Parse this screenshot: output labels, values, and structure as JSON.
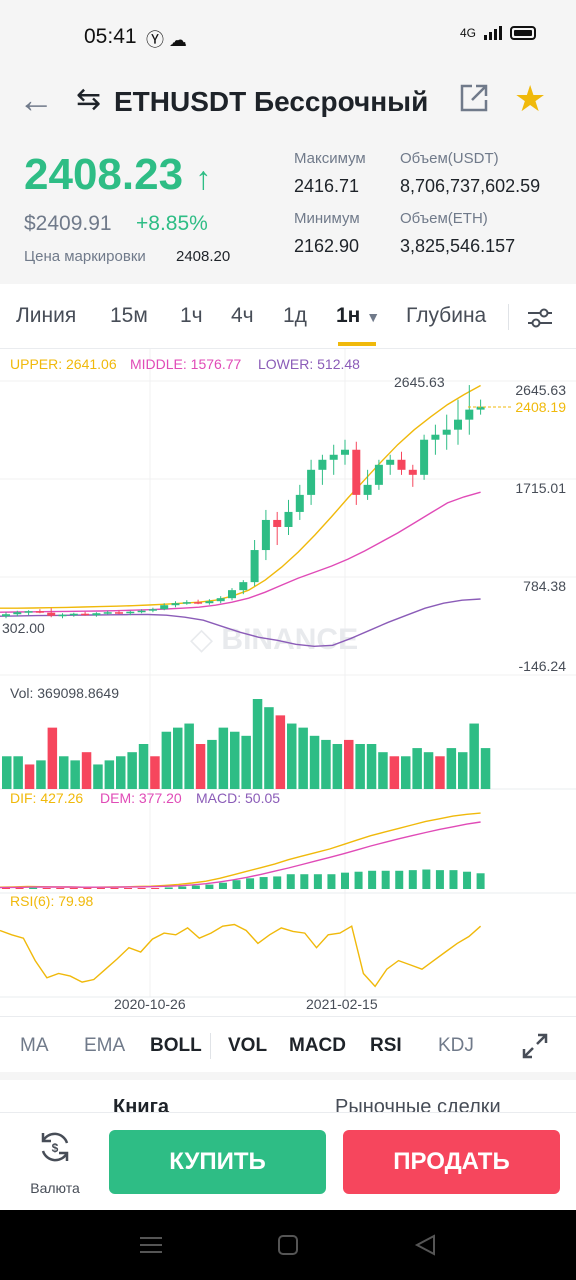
{
  "status": {
    "time": "05:41",
    "network": "4G"
  },
  "header": {
    "title": "ETHUSDT Бессрочный",
    "icons": [
      "back-arrow-icon",
      "swap-icon",
      "external-link-icon",
      "star-icon"
    ]
  },
  "ticker": {
    "last_price": "2408.23",
    "price_usd": "$2409.91",
    "change_pct": "+8.85%",
    "mark_label": "Цена маркировки",
    "mark_value": "2408.20",
    "high_label": "Максимум",
    "high_value": "2416.71",
    "low_label": "Минимум",
    "low_value": "2162.90",
    "vol_usdt_label": "Объем(USDT)",
    "vol_usdt_value": "8,706,737,602.59",
    "vol_eth_label": "Объем(ETH)",
    "vol_eth_value": "3,825,546.157"
  },
  "tabs": {
    "line": "Линия",
    "m15": "15м",
    "h1": "1ч",
    "h4": "4ч",
    "d1": "1д",
    "w1": "1н",
    "depth": "Глубина"
  },
  "chart_data": {
    "type": "candlestick",
    "interval": "1w",
    "boll": {
      "upper_label": "UPPER: 2641.06",
      "middle_label": "MIDDLE: 1576.77",
      "lower_label": "LOWER: 512.48"
    },
    "price_axis": [
      "2645.63",
      "1715.01",
      "784.38",
      "-146.24"
    ],
    "high_marker": "2645.63",
    "low_marker": "302.00",
    "current_price": "2408.19",
    "ylim": [
      -146.24,
      2645.63
    ],
    "candles": [
      {
        "o": 340,
        "h": 380,
        "l": 320,
        "c": 360
      },
      {
        "o": 360,
        "h": 395,
        "l": 340,
        "c": 380
      },
      {
        "o": 380,
        "h": 400,
        "l": 350,
        "c": 390
      },
      {
        "o": 390,
        "h": 410,
        "l": 370,
        "c": 375
      },
      {
        "o": 375,
        "h": 420,
        "l": 330,
        "c": 345
      },
      {
        "o": 345,
        "h": 370,
        "l": 320,
        "c": 355
      },
      {
        "o": 355,
        "h": 375,
        "l": 335,
        "c": 365
      },
      {
        "o": 365,
        "h": 385,
        "l": 345,
        "c": 350
      },
      {
        "o": 350,
        "h": 380,
        "l": 335,
        "c": 370
      },
      {
        "o": 370,
        "h": 395,
        "l": 355,
        "c": 380
      },
      {
        "o": 380,
        "h": 400,
        "l": 360,
        "c": 370
      },
      {
        "o": 370,
        "h": 395,
        "l": 350,
        "c": 385
      },
      {
        "o": 385,
        "h": 410,
        "l": 370,
        "c": 395
      },
      {
        "o": 395,
        "h": 425,
        "l": 380,
        "c": 410
      },
      {
        "o": 410,
        "h": 470,
        "l": 400,
        "c": 450
      },
      {
        "o": 450,
        "h": 490,
        "l": 430,
        "c": 470
      },
      {
        "o": 470,
        "h": 500,
        "l": 455,
        "c": 480
      },
      {
        "o": 480,
        "h": 505,
        "l": 460,
        "c": 470
      },
      {
        "o": 470,
        "h": 510,
        "l": 455,
        "c": 490
      },
      {
        "o": 490,
        "h": 540,
        "l": 470,
        "c": 520
      },
      {
        "o": 520,
        "h": 620,
        "l": 500,
        "c": 600
      },
      {
        "o": 600,
        "h": 700,
        "l": 560,
        "c": 680
      },
      {
        "o": 680,
        "h": 1100,
        "l": 640,
        "c": 1000
      },
      {
        "o": 1000,
        "h": 1400,
        "l": 900,
        "c": 1300
      },
      {
        "o": 1300,
        "h": 1380,
        "l": 1050,
        "c": 1230
      },
      {
        "o": 1230,
        "h": 1500,
        "l": 1150,
        "c": 1380
      },
      {
        "o": 1380,
        "h": 1650,
        "l": 1300,
        "c": 1550
      },
      {
        "o": 1550,
        "h": 1900,
        "l": 1450,
        "c": 1800
      },
      {
        "o": 1800,
        "h": 1950,
        "l": 1650,
        "c": 1900
      },
      {
        "o": 1900,
        "h": 2050,
        "l": 1750,
        "c": 1950
      },
      {
        "o": 1950,
        "h": 2100,
        "l": 1850,
        "c": 2000
      },
      {
        "o": 2000,
        "h": 2080,
        "l": 1450,
        "c": 1550
      },
      {
        "o": 1550,
        "h": 1800,
        "l": 1500,
        "c": 1650
      },
      {
        "o": 1650,
        "h": 1900,
        "l": 1600,
        "c": 1850
      },
      {
        "o": 1850,
        "h": 1950,
        "l": 1750,
        "c": 1900
      },
      {
        "o": 1900,
        "h": 1980,
        "l": 1750,
        "c": 1800
      },
      {
        "o": 1800,
        "h": 1850,
        "l": 1630,
        "c": 1750
      },
      {
        "o": 1750,
        "h": 2150,
        "l": 1700,
        "c": 2100
      },
      {
        "o": 2100,
        "h": 2250,
        "l": 1950,
        "c": 2150
      },
      {
        "o": 2150,
        "h": 2350,
        "l": 2000,
        "c": 2200
      },
      {
        "o": 2200,
        "h": 2500,
        "l": 2050,
        "c": 2300
      },
      {
        "o": 2300,
        "h": 2645,
        "l": 2150,
        "c": 2400
      },
      {
        "o": 2400,
        "h": 2500,
        "l": 2350,
        "c": 2430
      }
    ],
    "boll_upper": [
      420,
      420,
      422,
      425,
      428,
      432,
      436,
      440,
      445,
      452,
      460,
      470,
      480,
      500,
      540,
      600,
      700,
      830,
      980,
      1150,
      1330,
      1520,
      1700,
      1880,
      2050,
      2200,
      2330,
      2450,
      2550,
      2641
    ],
    "boll_middle": [
      380,
      382,
      384,
      386,
      388,
      390,
      392,
      395,
      400,
      405,
      412,
      420,
      430,
      450,
      480,
      520,
      580,
      650,
      720,
      780,
      840,
      910,
      990,
      1080,
      1170,
      1270,
      1370,
      1470,
      1530,
      1577
    ],
    "boll_lower": [
      340,
      343,
      346,
      348,
      350,
      352,
      354,
      356,
      357,
      350,
      330,
      300,
      240,
      180,
      130,
      100,
      60,
      40,
      50,
      120,
      200,
      280,
      350,
      420,
      470,
      500,
      512
    ],
    "vol_label": "Vol: 369098.8649",
    "volume": [
      40,
      40,
      30,
      35,
      75,
      40,
      35,
      45,
      30,
      35,
      40,
      45,
      55,
      40,
      70,
      75,
      80,
      55,
      60,
      75,
      70,
      65,
      110,
      100,
      90,
      80,
      75,
      65,
      60,
      55,
      60,
      55,
      55,
      45,
      40,
      40,
      50,
      45,
      40,
      50,
      45,
      80,
      50
    ],
    "volume_up": [
      1,
      1,
      0,
      1,
      0,
      1,
      1,
      0,
      1,
      1,
      1,
      1,
      1,
      0,
      1,
      1,
      1,
      0,
      1,
      1,
      1,
      1,
      1,
      1,
      0,
      1,
      1,
      1,
      1,
      1,
      0,
      1,
      1,
      1,
      0,
      1,
      1,
      1,
      0,
      1,
      1,
      1,
      1
    ],
    "macd": {
      "dif_label": "DIF: 427.26",
      "dem_label": "DEM: 377.20",
      "macd_label": "MACD: 50.05",
      "dif": [
        10,
        12,
        14,
        13,
        12,
        11,
        10,
        10,
        11,
        12,
        14,
        16,
        20,
        26,
        34,
        44,
        60,
        80,
        100,
        120,
        140,
        165,
        185,
        205,
        225,
        250,
        275,
        300,
        320,
        340,
        360,
        380,
        395,
        410,
        420,
        427
      ],
      "dem": [
        8,
        9,
        10,
        11,
        11,
        11,
        10,
        10,
        10,
        11,
        12,
        13,
        15,
        18,
        23,
        30,
        40,
        52,
        66,
        82,
        100,
        118,
        138,
        158,
        178,
        198,
        220,
        242,
        262,
        282,
        300,
        318,
        335,
        350,
        365,
        377
      ],
      "hist": [
        2,
        3,
        4,
        2,
        1,
        0,
        0,
        0,
        1,
        1,
        2,
        3,
        5,
        8,
        11,
        14,
        20,
        28,
        34,
        38,
        40,
        47,
        47,
        47,
        47,
        52,
        55,
        58,
        58,
        58,
        60,
        62,
        60,
        60,
        55,
        50
      ]
    },
    "rsi": {
      "label": "RSI(6): 79.98",
      "values": [
        75,
        70,
        66,
        40,
        20,
        25,
        22,
        15,
        18,
        30,
        42,
        55,
        50,
        65,
        72,
        70,
        78,
        66,
        72,
        80,
        82,
        75,
        60,
        70,
        78,
        74,
        72,
        55,
        70,
        72,
        80,
        25,
        10,
        30,
        40,
        35,
        30,
        40,
        50,
        60,
        68,
        80
      ]
    },
    "x_labels": [
      "2020-10-26",
      "2021-02-15"
    ]
  },
  "indicators": {
    "ma": "MA",
    "ema": "EMA",
    "boll": "BOLL",
    "vol": "VOL",
    "macd": "MACD",
    "rsi": "RSI",
    "kdj": "KDJ"
  },
  "book_tabs": {
    "book": "Книга",
    "trades": "Рыночные сделки"
  },
  "bottom": {
    "currency": "Валюта",
    "buy": "КУПИТЬ",
    "sell": "ПРОДАТЬ"
  },
  "colors": {
    "up": "#2ebd85",
    "down": "#f6465d",
    "accent": "#f0b90b",
    "boll_upper": "#f0b90b",
    "boll_middle": "#e04bb7",
    "boll_lower": "#8b5cb8"
  }
}
